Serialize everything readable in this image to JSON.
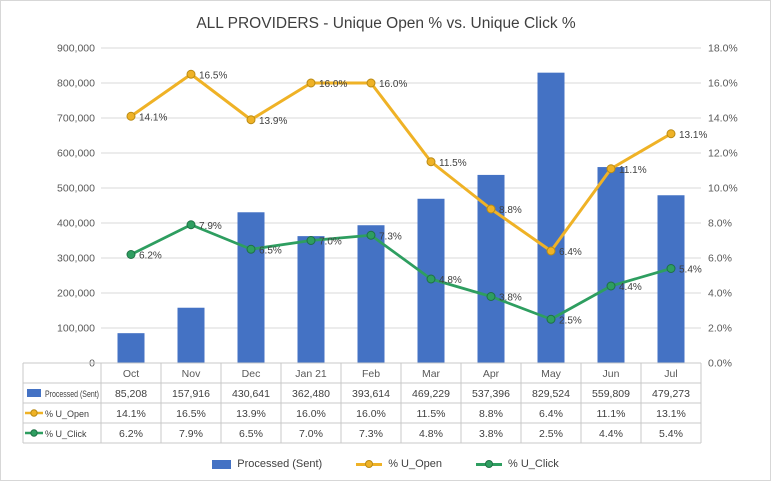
{
  "chart_data": {
    "type": "bar",
    "subtype": "combo-bar-line",
    "title": "ALL PROVIDERS - Unique Open % vs. Unique Click %",
    "categories": [
      "Oct",
      "Nov",
      "Dec",
      "Jan 21",
      "Feb",
      "Mar",
      "Apr",
      "May",
      "Jun",
      "Jul"
    ],
    "series": [
      {
        "name": "Processed (Sent)",
        "type": "bar",
        "axis": "left",
        "values": [
          85208,
          157916,
          430641,
          362480,
          393614,
          469229,
          537396,
          829524,
          559809,
          479273
        ]
      },
      {
        "name": "% U_Open",
        "type": "line",
        "axis": "right",
        "values": [
          14.1,
          16.5,
          13.9,
          16.0,
          16.0,
          11.5,
          8.8,
          6.4,
          11.1,
          13.1
        ]
      },
      {
        "name": "% U_Click",
        "type": "line",
        "axis": "right",
        "values": [
          6.2,
          7.9,
          6.5,
          7.0,
          7.3,
          4.8,
          3.8,
          2.5,
          4.4,
          5.4
        ]
      }
    ],
    "left_axis": {
      "min": 0,
      "max": 900000,
      "step": 100000,
      "tick_labels": [
        "0",
        "100,000",
        "200,000",
        "300,000",
        "400,000",
        "500,000",
        "600,000",
        "700,000",
        "800,000",
        "900,000"
      ]
    },
    "right_axis": {
      "min": 0,
      "max": 18,
      "step": 2,
      "format": "percent",
      "tick_labels": [
        "0.0%",
        "2.0%",
        "4.0%",
        "6.0%",
        "8.0%",
        "10.0%",
        "12.0%",
        "14.0%",
        "16.0%",
        "18.0%"
      ]
    },
    "grid": true,
    "data_labels": true,
    "data_table": true,
    "legend_position": "bottom"
  },
  "colors": {
    "bar": "#4472C4",
    "open": "#EFB226",
    "open_dark": "#B98A14",
    "click": "#2E9E60",
    "click_dark": "#1E7145",
    "grid": "#D9D9D9",
    "border": "#C9C9C9",
    "axis_text": "#595959",
    "label_text": "#404040",
    "title_text": "#3F3F3F"
  }
}
